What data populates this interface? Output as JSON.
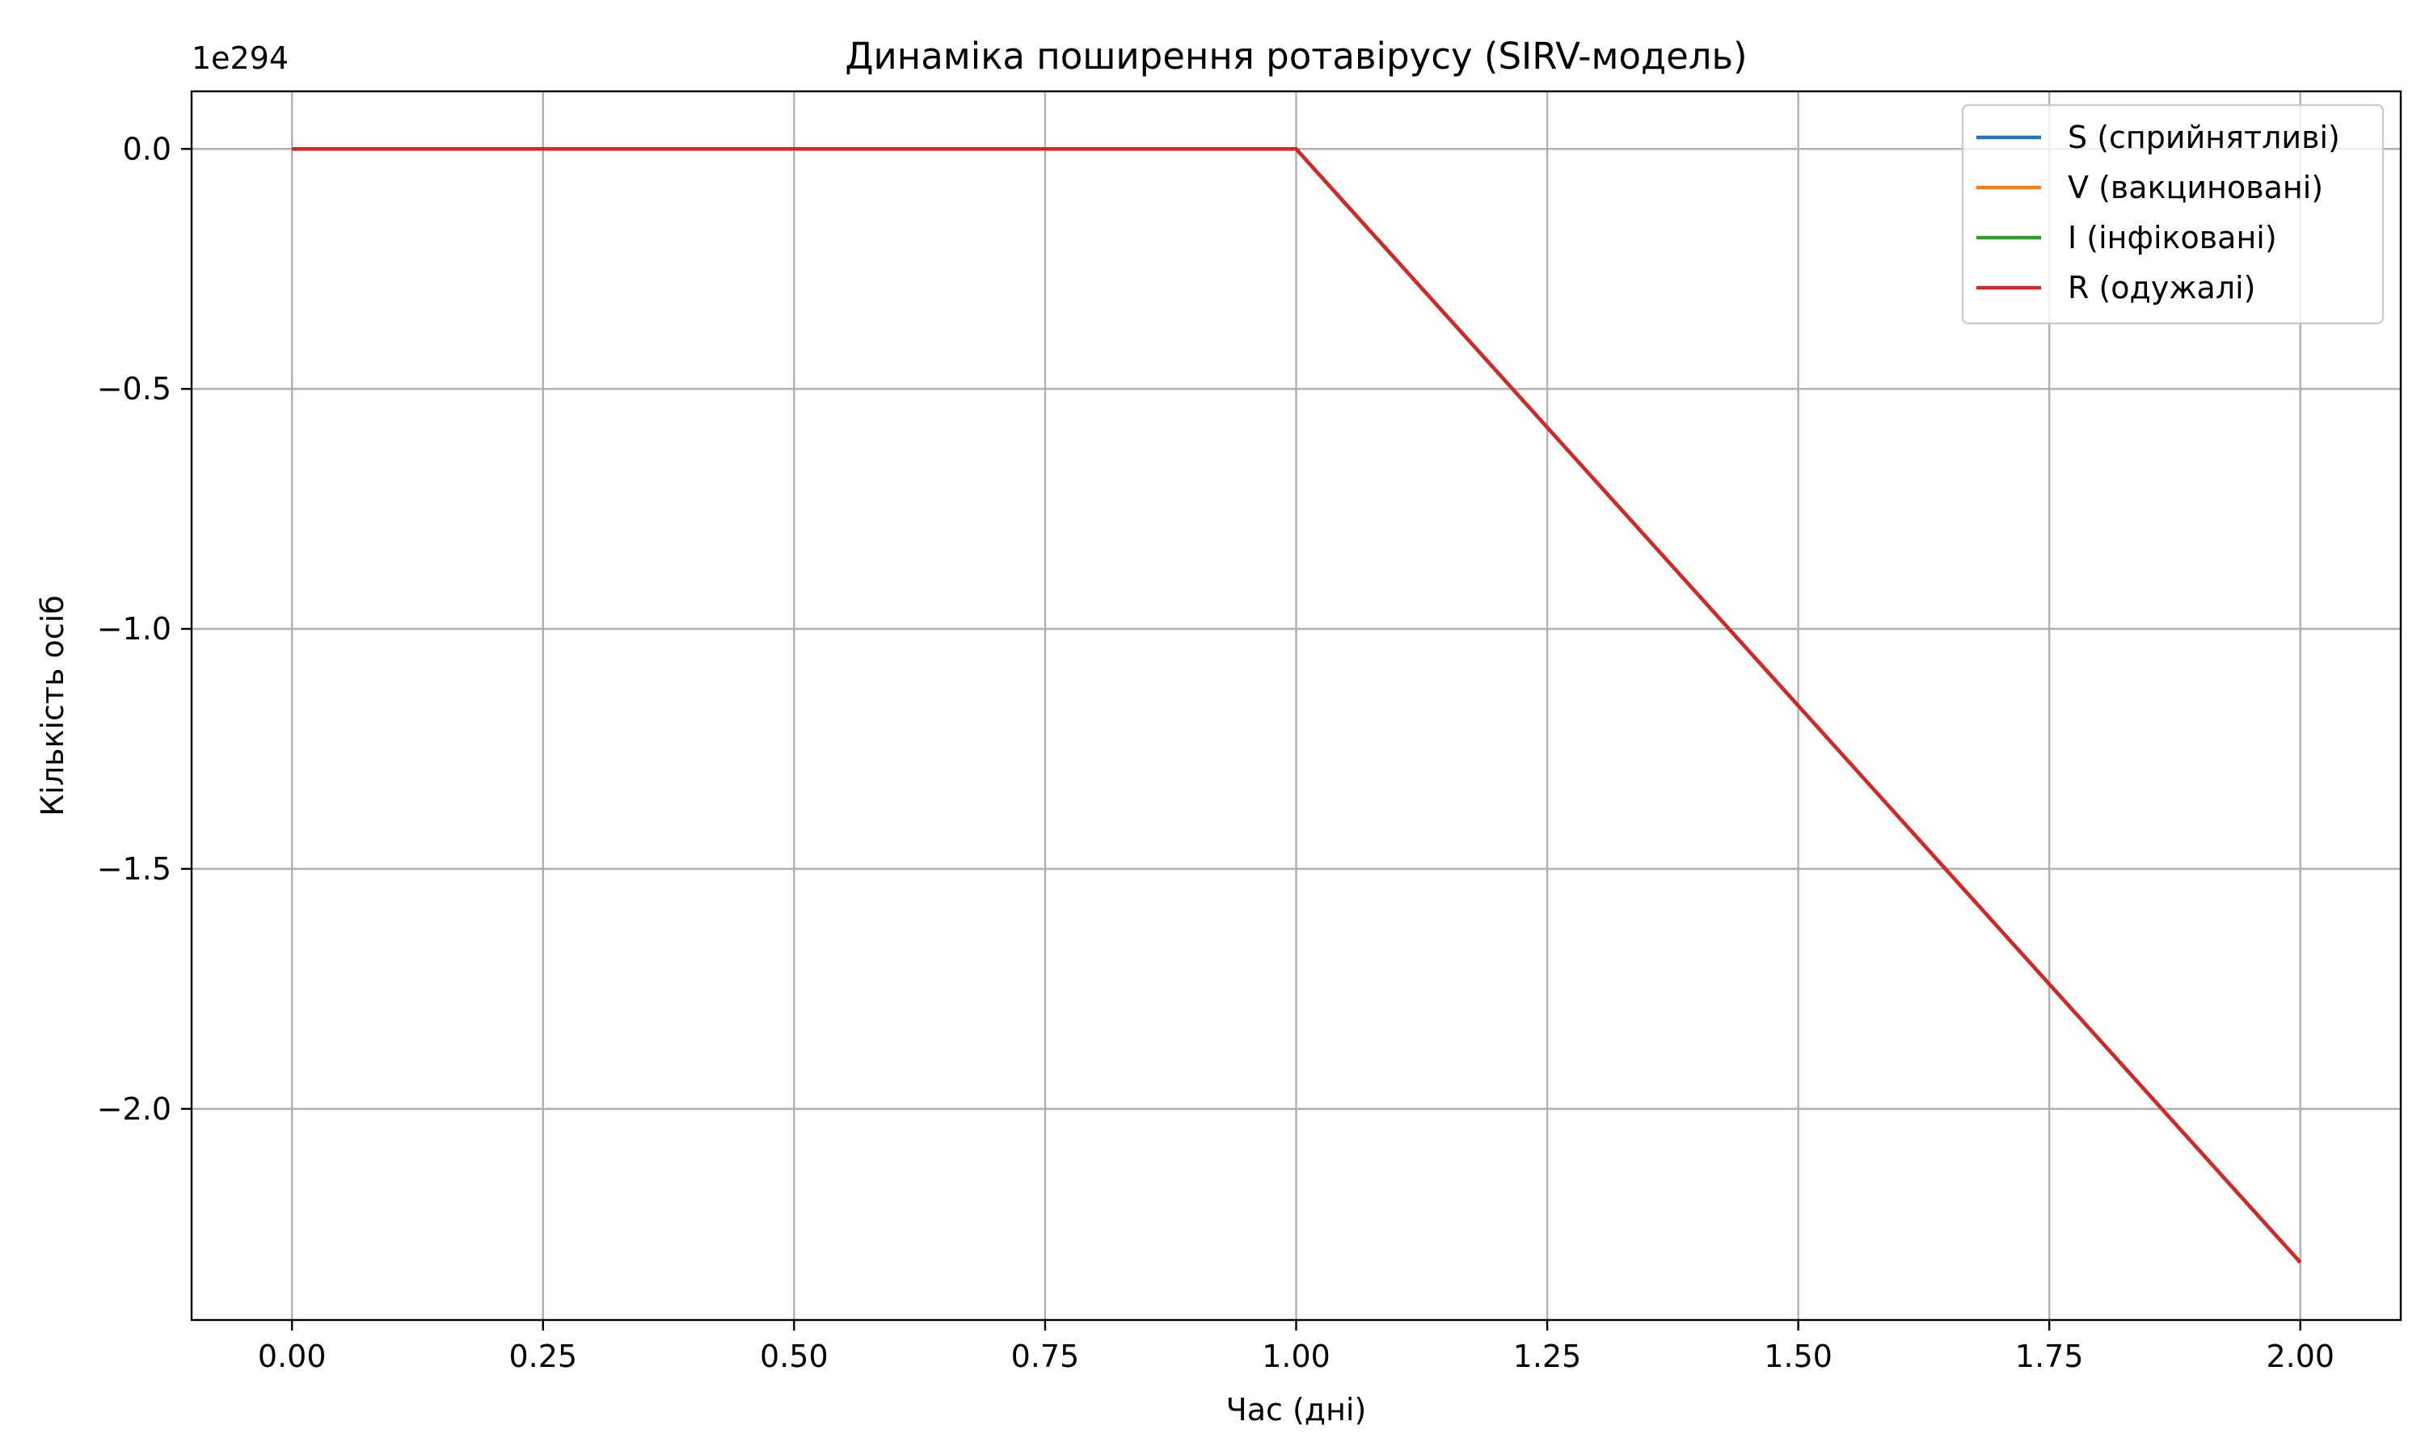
{
  "chart_data": {
    "type": "line",
    "title": "Динаміка поширення ротавірусу (SIRV-модель)",
    "xlabel": "Час (дні)",
    "ylabel": "Кількість осіб",
    "offset_label": "1e294",
    "xlim": [
      -0.1,
      2.1
    ],
    "ylim": [
      -2.44,
      0.12
    ],
    "x_ticks": [
      0.0,
      0.25,
      0.5,
      0.75,
      1.0,
      1.25,
      1.5,
      1.75,
      2.0
    ],
    "x_tick_labels": [
      "0.00",
      "0.25",
      "0.50",
      "0.75",
      "1.00",
      "1.25",
      "1.50",
      "1.75",
      "2.00"
    ],
    "y_ticks": [
      0.0,
      -0.5,
      -1.0,
      -1.5,
      -2.0
    ],
    "y_tick_labels": [
      "0.0",
      "−0.5",
      "−1.0",
      "−1.5",
      "−2.0"
    ],
    "grid": true,
    "legend_position": "top-right",
    "x": [
      0,
      1,
      2
    ],
    "series": [
      {
        "name": "S (сприйнятливі)",
        "color": "#1f77b4",
        "values": [
          0,
          0,
          -2.32
        ]
      },
      {
        "name": "V (вакциновані)",
        "color": "#ff7f0e",
        "values": [
          0,
          0,
          -2.32
        ]
      },
      {
        "name": "I (інфіковані)",
        "color": "#2ca02c",
        "values": [
          0,
          0,
          -2.32
        ]
      },
      {
        "name": "R (одужалі)",
        "color": "#d62728",
        "values": [
          0,
          0,
          -2.32
        ]
      }
    ]
  }
}
